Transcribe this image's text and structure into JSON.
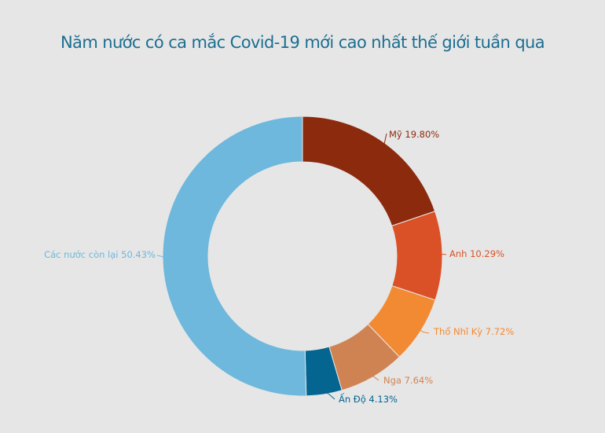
{
  "chart_data": {
    "type": "pie",
    "donut": true,
    "title": "Năm nước có ca mắc Covid-19 mới cao nhất thế giới tuần qua",
    "categories": [
      "Mỹ",
      "Anh",
      "Thổ Nhĩ Kỳ",
      "Nga",
      "Ấn Độ",
      "Các nước còn lại"
    ],
    "values": [
      19.8,
      10.29,
      7.72,
      7.64,
      4.13,
      50.43
    ],
    "labels": [
      "Mỹ 19.80%",
      "Anh 10.29%",
      "Thổ Nhĩ Kỳ 7.72%",
      "Nga 7.64%",
      "Ấn Độ 4.13%",
      "Các nước còn lại 50.43%"
    ],
    "colors": [
      "#8b2a0d",
      "#db5127",
      "#f28a33",
      "#d08352",
      "#046591",
      "#6db8dc"
    ],
    "unit": "%"
  }
}
